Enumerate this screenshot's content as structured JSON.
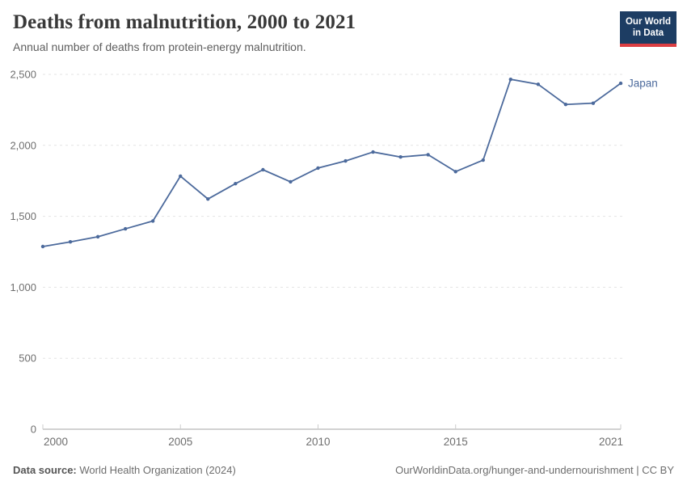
{
  "header": {
    "title": "Deaths from malnutrition, 2000 to 2021",
    "subtitle": "Annual number of deaths from protein-energy malnutrition.",
    "logo": {
      "line1": "Our World",
      "line2": "in Data"
    }
  },
  "footer": {
    "data_source_label": "Data source:",
    "data_source_value": " World Health Organization (2024)",
    "credit": "OurWorldinData.org/hunger-and-undernourishment | CC BY"
  },
  "colors": {
    "series_blue": "#4c6a9c",
    "logo_navy": "#1d3d63",
    "logo_red": "#dc3e42",
    "gridline": "#e3e3e3",
    "axis_line": "#a5a5a5",
    "tick_text": "#6e6e6e"
  },
  "chart_data": {
    "type": "line",
    "title": "Deaths from malnutrition, 2000 to 2021",
    "subtitle": "Annual number of deaths from protein-energy malnutrition.",
    "xlabel": "",
    "ylabel": "",
    "xlim": [
      2000,
      2021
    ],
    "ylim": [
      0,
      2500
    ],
    "grid": "dashed-horizontal",
    "legend": "end-of-line-label",
    "x": [
      2000,
      2001,
      2002,
      2003,
      2004,
      2005,
      2006,
      2007,
      2008,
      2009,
      2010,
      2011,
      2012,
      2013,
      2014,
      2015,
      2016,
      2017,
      2018,
      2019,
      2020,
      2021
    ],
    "series": [
      {
        "name": "Japan",
        "color": "#4c6a9c",
        "values": [
          1287,
          1320,
          1356,
          1412,
          1467,
          1783,
          1622,
          1730,
          1828,
          1743,
          1840,
          1890,
          1953,
          1918,
          1934,
          1815,
          1896,
          2465,
          2430,
          2288,
          2297,
          2437
        ]
      }
    ],
    "yticks": [
      0,
      500,
      1000,
      1500,
      2000,
      2500
    ],
    "ytick_labels": [
      "0",
      "500",
      "1,000",
      "1,500",
      "2,000",
      "2,500"
    ],
    "xticks": [
      2000,
      2005,
      2010,
      2015,
      2021
    ],
    "xtick_labels": [
      "2000",
      "2005",
      "2010",
      "2015",
      "2021"
    ]
  }
}
